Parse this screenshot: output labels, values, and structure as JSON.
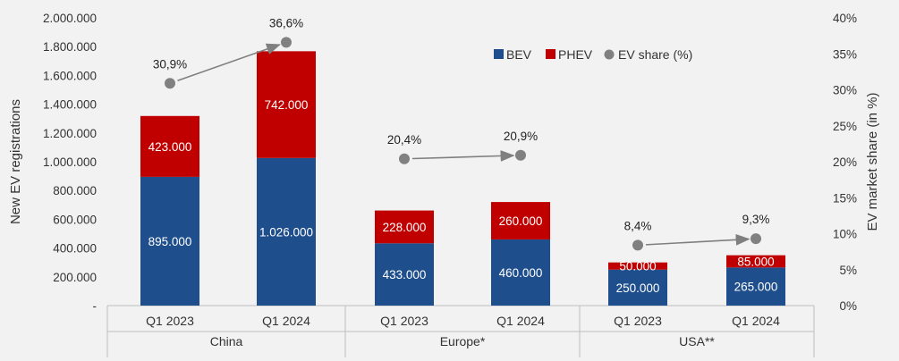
{
  "chart_data": {
    "type": "bar",
    "stacked": true,
    "groups": [
      "China",
      "Europe*",
      "USA**"
    ],
    "categories": [
      "Q1 2023",
      "Q1 2024",
      "Q1 2023",
      "Q1 2024",
      "Q1 2023",
      "Q1 2024"
    ],
    "series": [
      {
        "name": "BEV",
        "values": [
          895000,
          1026000,
          433000,
          460000,
          250000,
          265000
        ],
        "labels": [
          "895.000",
          "1.026.000",
          "433.000",
          "460.000",
          "250.000",
          "265.000"
        ]
      },
      {
        "name": "PHEV",
        "values": [
          423000,
          742000,
          228000,
          260000,
          50000,
          85000
        ],
        "labels": [
          "423.000",
          "742.000",
          "228.000",
          "260.000",
          "50.000",
          "85.000"
        ]
      },
      {
        "name": "EV share (%)",
        "values": [
          30.9,
          36.6,
          20.4,
          20.9,
          8.4,
          9.3
        ],
        "labels": [
          "30,9%",
          "36,6%",
          "20,4%",
          "20,9%",
          "8,4%",
          "9,3%"
        ]
      }
    ],
    "ylabel": "New EV registrations",
    "y2label": "EV market share (in %)",
    "ylim": [
      0,
      2000000
    ],
    "y2lim": [
      0,
      40
    ],
    "yticks": [
      "-",
      "200.000",
      "400.000",
      "600.000",
      "800.000",
      "1.000.000",
      "1.200.000",
      "1.400.000",
      "1.600.000",
      "1.800.000",
      "2.000.000"
    ],
    "y2ticks": [
      "0%",
      "5%",
      "10%",
      "15%",
      "20%",
      "25%",
      "30%",
      "35%",
      "40%"
    ],
    "colors": {
      "BEV": "#1f4e8c",
      "PHEV": "#c00000",
      "share": "#808080",
      "arrow": "#7f7f7f"
    },
    "legend_position": "top-right",
    "grid": false
  }
}
